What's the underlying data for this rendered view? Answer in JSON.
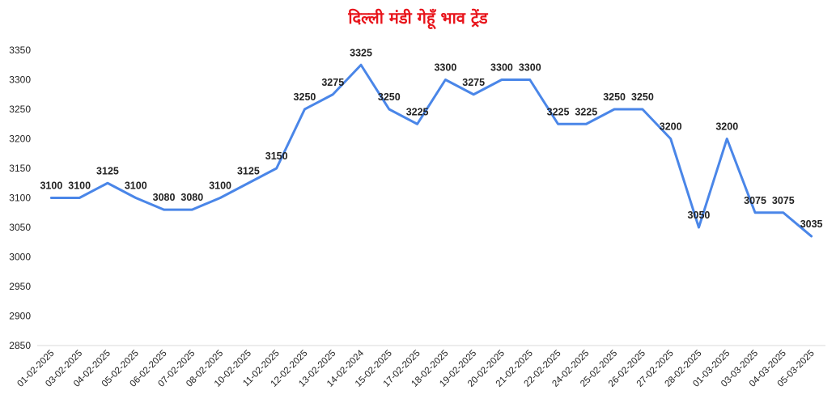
{
  "chart_data": {
    "type": "line",
    "title": "दिल्ली मंडी गेहूँ भाव ट्रेंड",
    "xlabel": "",
    "ylabel": "",
    "ylim": [
      2850,
      3350
    ],
    "yticks": [
      2850,
      2900,
      2950,
      3000,
      3050,
      3100,
      3150,
      3200,
      3250,
      3300,
      3350
    ],
    "grid": false,
    "legend": "none",
    "colors": {
      "line": "#4a86e8",
      "title": "#e8141b"
    },
    "categories": [
      "01-02-2025",
      "03-02-2025",
      "04-02-2025",
      "05-02-2025",
      "06-02-2025",
      "07-02-2025",
      "08-02-2025",
      "10-02-2025",
      "11-02-2025",
      "12-02-2025",
      "13-02-2025",
      "14-02-2024",
      "15-02-2025",
      "17-02-2025",
      "18-02-2025",
      "19-02-2025",
      "20-02-2025",
      "21-02-2025",
      "22-02-2025",
      "24-02-2025",
      "25-02-2025",
      "26-02-2025",
      "27-02-2025",
      "28-02-2025",
      "01-03-2025",
      "03-03-2025",
      "04-03-2025",
      "05-03-2025"
    ],
    "series": [
      {
        "values": [
          3100,
          3100,
          3125,
          3100,
          3080,
          3080,
          3100,
          3125,
          3150,
          3250,
          3275,
          3325,
          3250,
          3225,
          3300,
          3275,
          3300,
          3300,
          3225,
          3225,
          3250,
          3250,
          3200,
          3050,
          3200,
          3075,
          3075,
          3035
        ]
      }
    ]
  }
}
